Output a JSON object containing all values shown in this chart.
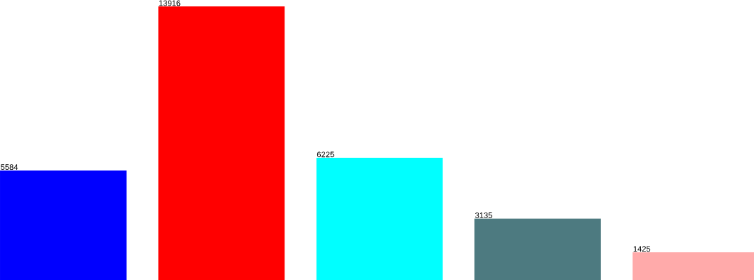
{
  "chart_data": {
    "type": "bar",
    "categories": [
      null,
      null,
      null,
      null,
      null
    ],
    "values": [
      5584,
      13916,
      6225,
      3135,
      1425
    ],
    "colors": [
      "#0000ff",
      "#ff0000",
      "#00ffff",
      "#4d7a80",
      "#ffaaaa"
    ],
    "data_labels": true
  }
}
